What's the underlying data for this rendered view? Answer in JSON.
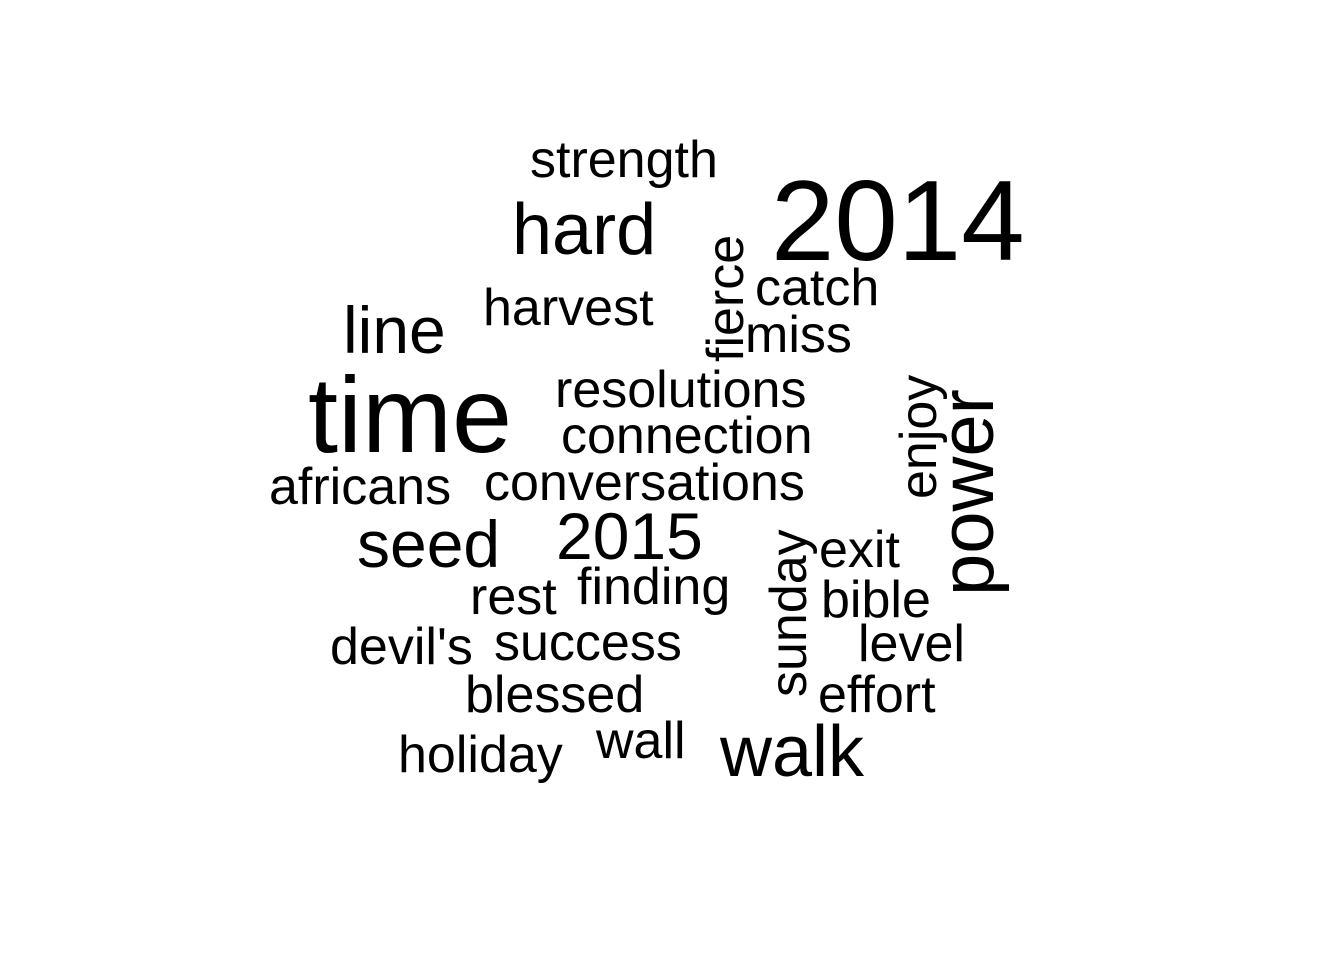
{
  "word_cloud": {
    "words": [
      {
        "text": "2014",
        "weight": 10
      },
      {
        "text": "time",
        "weight": 10
      },
      {
        "text": "power",
        "weight": 7
      },
      {
        "text": "walk",
        "weight": 7
      },
      {
        "text": "hard",
        "weight": 7
      },
      {
        "text": "seed",
        "weight": 6
      },
      {
        "text": "2015",
        "weight": 6
      },
      {
        "text": "line",
        "weight": 6
      },
      {
        "text": "strength",
        "weight": 5
      },
      {
        "text": "harvest",
        "weight": 5
      },
      {
        "text": "fierce",
        "weight": 5
      },
      {
        "text": "catch",
        "weight": 5
      },
      {
        "text": "miss",
        "weight": 5
      },
      {
        "text": "resolutions",
        "weight": 5
      },
      {
        "text": "connection",
        "weight": 5
      },
      {
        "text": "conversations",
        "weight": 5
      },
      {
        "text": "africans",
        "weight": 5
      },
      {
        "text": "enjoy",
        "weight": 5
      },
      {
        "text": "sunday",
        "weight": 5
      },
      {
        "text": "exit",
        "weight": 5
      },
      {
        "text": "finding",
        "weight": 5
      },
      {
        "text": "rest",
        "weight": 5
      },
      {
        "text": "bible",
        "weight": 5
      },
      {
        "text": "devil's",
        "weight": 5
      },
      {
        "text": "success",
        "weight": 5
      },
      {
        "text": "level",
        "weight": 5
      },
      {
        "text": "blessed",
        "weight": 5
      },
      {
        "text": "effort",
        "weight": 5
      },
      {
        "text": "holiday",
        "weight": 5
      },
      {
        "text": "wall",
        "weight": 5
      }
    ]
  }
}
